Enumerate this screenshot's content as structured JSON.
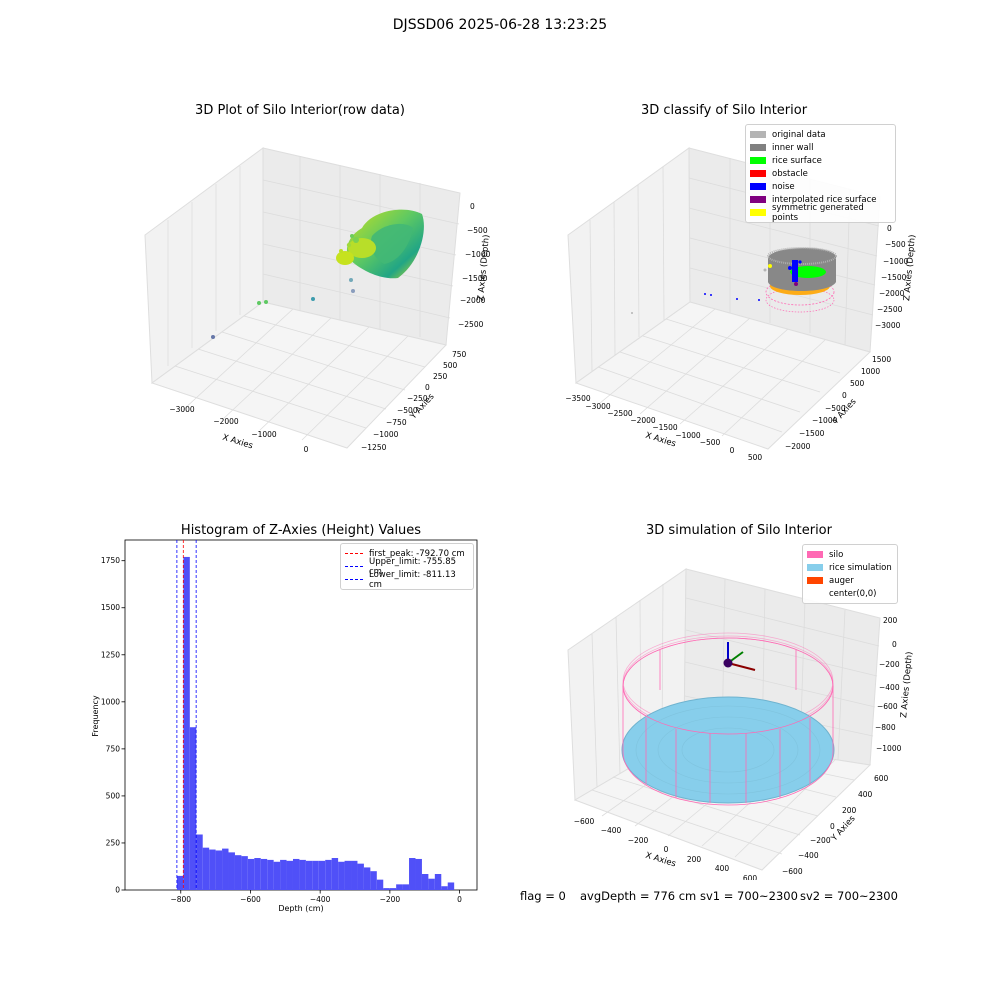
{
  "figure": {
    "suptitle": "DJSSD06 2025-06-28 13:23:25",
    "status_line": {
      "flag": "flag = 0",
      "avg_depth": "avgDepth = 776 cm",
      "sv1": "sv1 = 700~2300",
      "sv2": "sv2 = 700~2300"
    }
  },
  "colors": {
    "pane": "#f2f2f2",
    "grid": "#dcdcdc",
    "histogram_bar": "#5050f8",
    "first_peak": "#ff0000",
    "limits": "#0000ff",
    "silo": "#ff69b4",
    "rice_simulation": "#87ceeb",
    "auger": "#ff4500"
  },
  "chart_data": [
    {
      "type": "scatter",
      "title": "3D Plot of Silo Interior(row data)",
      "xlabel": "X Axies",
      "ylabel": "Y Axies",
      "zlabel": "Z Axies (Depth)",
      "x_ticks": [
        "−3000",
        "−2000",
        "−1000",
        "0"
      ],
      "y_ticks": [
        "750",
        "500",
        "250",
        "0",
        "−250",
        "−500",
        "−750",
        "−1000",
        "−1250"
      ],
      "z_ticks": [
        "0",
        "−500",
        "−1000",
        "−1500",
        "−2000",
        "−2500"
      ],
      "outlier_points_count": 6,
      "colormap": "viridis"
    },
    {
      "type": "scatter",
      "title": "3D classify of Silo Interior",
      "xlabel": "X Axies",
      "ylabel": "Y Axies",
      "zlabel": "Z Axies (Depth)",
      "x_ticks": [
        "−3500",
        "−3000",
        "−2500",
        "−2000",
        "−1500",
        "−1000",
        "−500",
        "0",
        "500"
      ],
      "y_ticks": [
        "1500",
        "1000",
        "500",
        "0",
        "−500",
        "−1000",
        "−1500",
        "−2000"
      ],
      "z_ticks": [
        "0",
        "−500",
        "−1000",
        "−1500",
        "−2000",
        "−2500",
        "−3000"
      ],
      "legend": [
        {
          "label": "original data",
          "color": "#b4b4b4"
        },
        {
          "label": "inner wall",
          "color": "#808080"
        },
        {
          "label": "rice surface",
          "color": "#00ff00"
        },
        {
          "label": "obstacle",
          "color": "#ff0000"
        },
        {
          "label": "noise",
          "color": "#0000ff"
        },
        {
          "label": "interpolated rice surface",
          "color": "#800080"
        },
        {
          "label": "symmetric generated points",
          "color": "#ffff00"
        }
      ]
    },
    {
      "type": "bar",
      "title": "Histogram of Z-Axies (Height) Values",
      "xlabel": "Depth (cm)",
      "ylabel": "Frequency",
      "xlim": [
        -960,
        50
      ],
      "ylim": [
        0,
        1860
      ],
      "x_ticks": [
        -800,
        -600,
        -400,
        -200,
        0
      ],
      "y_ticks": [
        0,
        250,
        500,
        750,
        1000,
        1250,
        1500,
        1750
      ],
      "bin_start": -811,
      "bin_width": 18.5,
      "values": [
        75,
        1770,
        865,
        295,
        225,
        215,
        210,
        220,
        200,
        185,
        180,
        165,
        170,
        165,
        160,
        150,
        160,
        155,
        165,
        160,
        155,
        155,
        155,
        160,
        170,
        150,
        155,
        155,
        140,
        120,
        100,
        55,
        10,
        10,
        30,
        30,
        170,
        165,
        85,
        60,
        85,
        20,
        40
      ],
      "vlines": [
        {
          "label": "first_peak: -792.70 cm",
          "x": -792.7,
          "color": "#ff0000"
        },
        {
          "label": "Upper_limit: -755.85 cm",
          "x": -755.85,
          "color": "#0000ff"
        },
        {
          "label": "Lower_limit: -811.13 cm",
          "x": -811.13,
          "color": "#0000ff"
        }
      ]
    },
    {
      "type": "scatter",
      "title": "3D simulation of Silo Interior",
      "xlabel": "X Axies",
      "ylabel": "Y Axies",
      "zlabel": "Z Axies (Depth)",
      "x_ticks": [
        "−600",
        "−400",
        "−200",
        "0",
        "200",
        "400",
        "600"
      ],
      "y_ticks": [
        "600",
        "400",
        "200",
        "0",
        "−200",
        "−400",
        "−600"
      ],
      "z_ticks": [
        "200",
        "0",
        "−200",
        "−400",
        "−600",
        "−800",
        "−1000"
      ],
      "legend": [
        {
          "label": "silo",
          "color": "#ff69b4"
        },
        {
          "label": "rice simulation",
          "color": "#87ceeb"
        },
        {
          "label": "auger",
          "color": "#ff4500"
        },
        {
          "label": "center(0,0)",
          "color": ""
        }
      ]
    }
  ]
}
